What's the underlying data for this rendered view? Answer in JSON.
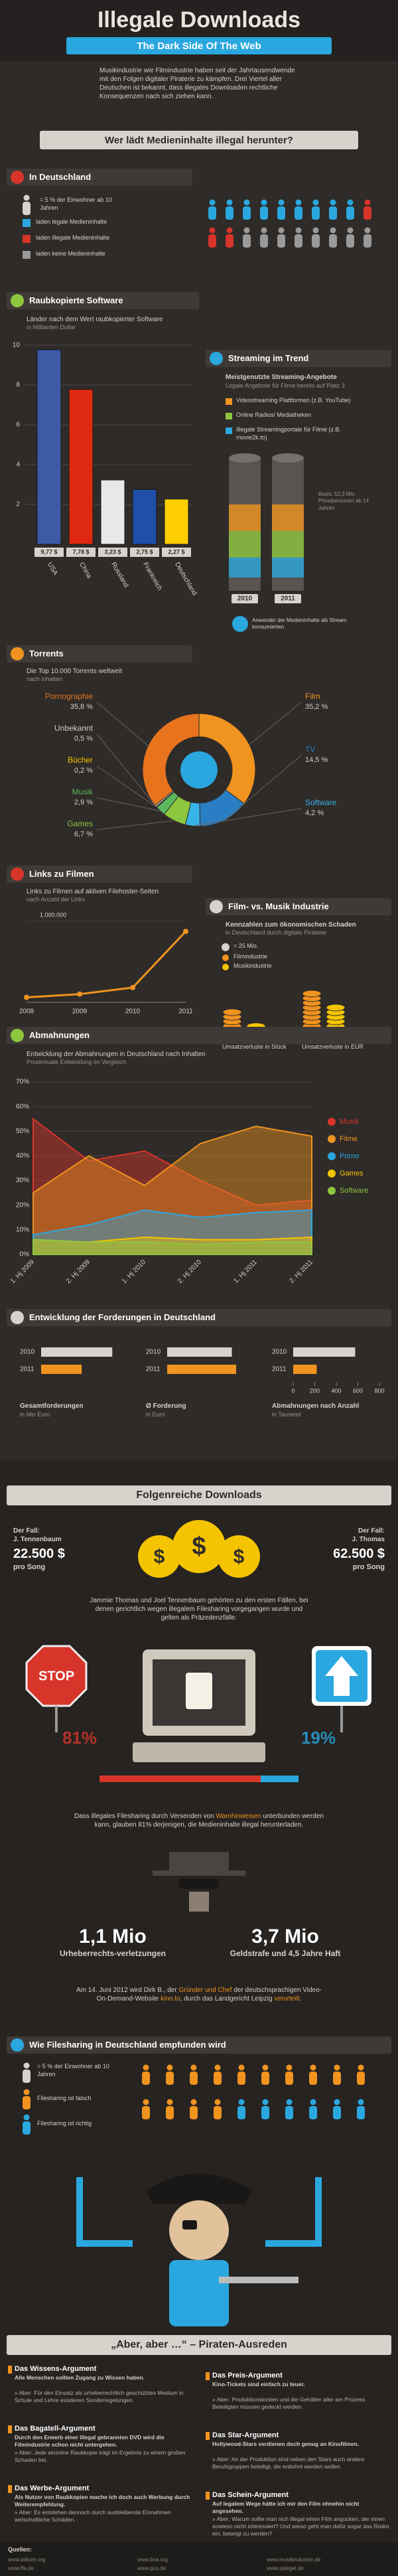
{
  "header": {
    "title": "Illegale Downloads",
    "subtitle": "The Dark Side Of The Web",
    "intro": "Musikindustrie wie Filmindustrie haben seit der Jahrtausendwende mit den Folgen digitaler Piraterie zu kämpfen. Drei Viertel aller Deutschen ist bekannt, dass illegales Downloaden rechtliche Konsequenzen nach sich ziehen kann."
  },
  "who": {
    "heading": "Wer lädt Medieninhalte illegal herunter?"
  },
  "germany": {
    "title": "In Deutschland",
    "unit_label": "= 5 % der Einwohner ab 10 Jahren",
    "unit": 5,
    "categories": [
      "laden legale Medieninhalte",
      "laden illegale Medieninhalte",
      "laden keine Medieninhalte"
    ],
    "values": [
      45,
      15,
      40
    ],
    "colors": [
      "#2aa7df",
      "#d8352a",
      "#9a9a9a"
    ]
  },
  "software": {
    "type": "bar",
    "title": "Raubkopierte Software",
    "subtitle": "Länder nach dem Wert raubkopierter Software",
    "unit_note": "in Milliarden Dollar",
    "categories": [
      "USA",
      "China",
      "Russland",
      "Frankreich",
      "Deutschland"
    ],
    "values": [
      9.77,
      7.78,
      3.23,
      2.75,
      2.27
    ],
    "value_labels": [
      "9,77 $",
      "7,78 $",
      "3,23 $",
      "2,75 $",
      "2,27 $"
    ],
    "colors": [
      "#3c5aa6",
      "#de2910",
      "#e8e8e8",
      "#1f4fa8",
      "#ffce00"
    ],
    "ylim": [
      0,
      10
    ],
    "yticks": [
      2,
      4,
      6,
      8,
      10
    ]
  },
  "streaming": {
    "title": "Streaming im Trend",
    "subtitle": "Meistgenutzte Streaming-Angebote",
    "note": "Legale Angebote für Filme bereits auf Platz 3",
    "legend": [
      {
        "name": "Videostreaming Plattformen (z.B. YouTube)",
        "color": "#f0931f"
      },
      {
        "name": "Online Radios/ Mediatheken",
        "color": "#8dc63f"
      },
      {
        "name": "Illegale Streamingportale für Filme (z.B. movie2k.to)",
        "color": "#2aa7df"
      }
    ],
    "years": [
      "2010",
      "2011"
    ],
    "basis": "Basis: 52,3 Mio Privatpersonen ab 14 Jahren",
    "annotation": "Anwender der Medieninhalte als Stream konsumierten"
  },
  "torrents": {
    "type": "pie",
    "title": "Torrents",
    "subtitle": "Die Top 10.000 Torrents weltweit",
    "unit_note": "nach Inhalten",
    "categories": [
      "Film",
      "TV",
      "Software",
      "Games",
      "Musik",
      "Bücher",
      "Unbekannt",
      "Pornographie"
    ],
    "values": [
      35.2,
      14.5,
      4.2,
      6.7,
      2.9,
      0.2,
      0.5,
      35.8
    ],
    "value_labels": [
      "35,2 %",
      "14,5 %",
      "4,2 %",
      "6,7 %",
      "2,9 %",
      "0,2 %",
      "0,5 %",
      "35,8 %"
    ],
    "colors": [
      "#f0931f",
      "#2a7fc4",
      "#39b4e8",
      "#8dc63f",
      "#5cb85c",
      "#f5c400",
      "#cfcfcf",
      "#e8731d"
    ]
  },
  "links": {
    "type": "line",
    "title": "Links zu Filmen",
    "subtitle": "Links zu Filmen auf aktiven Filehoster-Seiten",
    "unit_note": "nach Anzahl der Links",
    "x": [
      "2008",
      "2009",
      "2010",
      "2011"
    ],
    "values": [
      60000,
      100000,
      180000,
      870000
    ],
    "color": "#f0931f",
    "ylim": [
      0,
      1100000
    ],
    "yticks": [
      {
        "value": 1000000,
        "label": "1.000.000"
      }
    ]
  },
  "industry": {
    "title": "Film- vs. Musik Industrie",
    "subtitle": "Kennzahlen zum ökonomischen Schaden",
    "subtitle2": "in Deutschland durch digitale Piraterie",
    "unit_label": "= 25 Mio.",
    "unit": 25,
    "series": [
      {
        "name": "Filmindustrie",
        "color": "#f0931f"
      },
      {
        "name": "Musikindustrie",
        "color": "#f5c400"
      }
    ],
    "groups": [
      {
        "label": "Umsatzverluste in Stück",
        "values": [
          150,
          75
        ]
      },
      {
        "label": "Umsatzverluste in EUR",
        "values": [
          250,
          175
        ]
      }
    ]
  },
  "warnings": {
    "type": "area",
    "title": "Abmahnungen",
    "subtitle": "Entwicklung der Abmahnungen in Deutschland nach Inhalten",
    "unit_note": "Prozentuale Entwicklung im Vergleich",
    "categories": [
      "1. Hj 2009",
      "2. Hj 2009",
      "1. Hj 2010",
      "2. Hj 2010",
      "1. Hj 2011",
      "2. Hj 2011"
    ],
    "series": [
      {
        "name": "Musik",
        "color": "#d8352a",
        "values": [
          55,
          38,
          42,
          30,
          20,
          22
        ]
      },
      {
        "name": "Filme",
        "color": "#f0931f",
        "values": [
          25,
          40,
          28,
          45,
          52,
          48
        ]
      },
      {
        "name": "Porno",
        "color": "#2aa7df",
        "values": [
          8,
          12,
          18,
          15,
          17,
          18
        ]
      },
      {
        "name": "Games",
        "color": "#f5c400",
        "values": [
          6,
          5,
          7,
          6,
          6,
          7
        ]
      },
      {
        "name": "Software",
        "color": "#8dc63f",
        "values": [
          6,
          5,
          5,
          4,
          5,
          5
        ]
      }
    ],
    "ylim": [
      0,
      70
    ],
    "yticks": [
      {
        "value": 0,
        "label": "0%"
      },
      {
        "value": 10,
        "label": "10%"
      },
      {
        "value": 20,
        "label": "20%"
      },
      {
        "value": 30,
        "label": "30%"
      },
      {
        "value": 40,
        "label": "40%"
      },
      {
        "value": 50,
        "label": "50%"
      },
      {
        "value": 60,
        "label": "60%"
      },
      {
        "value": 70,
        "label": "70%"
      }
    ]
  },
  "claims": {
    "title": "Entwicklung der Forderungen in Deutschland",
    "years": [
      "2010",
      "2011"
    ],
    "charts": [
      {
        "label": "Gesamtforderungen",
        "unit_note": "in Mio Euro",
        "values": [
          165,
          94
        ],
        "xlim": [
          0,
          200
        ]
      },
      {
        "label": "Ø Forderung",
        "unit_note": "in Euro",
        "values": [
          750,
          800
        ],
        "xlim": [
          0,
          1000
        ]
      },
      {
        "label": "Abmahnungen nach Anzahl",
        "unit_note": "in Tausend",
        "values": [
          575,
          218
        ],
        "xlim": [
          0,
          800
        ],
        "xticks": [
          0,
          200,
          400,
          600,
          800
        ]
      }
    ]
  },
  "consequences": {
    "heading": "Folgenreiche Downloads",
    "cases": [
      {
        "label": "Der Fall:",
        "name": "J. Tennenbaum",
        "amount": "22.500 $",
        "unit": "pro Song"
      },
      {
        "label": "Der Fall:",
        "name": "J. Thomas",
        "amount": "62.500 $",
        "unit": "pro Song"
      }
    ],
    "text": "Jammie Thomas und Joel Tennenbaum gehörten zu den ersten Fällen, bei denen gerichtlich wegen illegalem Filesharing vorgegangen wurde und gelten als Präzedenzfälle.",
    "belief": {
      "values": [
        81,
        19
      ],
      "value_labels": [
        "81%",
        "19%"
      ],
      "colors": [
        "#d8352a",
        "#2aa7df"
      ]
    },
    "warn_text": [
      "Dass illegales Filesharing durch Versenden von ",
      "Warnhinweisen",
      " unterbunden werden kann, glauben 81% derjenigen, die Medieninhalte illegal herunterladen."
    ],
    "stats": [
      {
        "value": "1,1 Mio",
        "label": "Urheberrechts-verletzungen"
      },
      {
        "value": "3,7 Mio",
        "label": "Geldstrafe und 4,5 Jahre Haft"
      }
    ],
    "verdict": [
      "Am 14. Juni 2012 wird Dirk B., der ",
      "Gründer und Chef",
      " der deutschsprachigen Video-On-Demand-Website ",
      "kino.to",
      ", durch das Landgericht Leipzig ",
      "verurteilt",
      "."
    ]
  },
  "perception": {
    "title": "Wie Filesharing in Deutschland empfunden wird",
    "unit_label": "= 5 % der Einwohner ab 10 Jahren",
    "unit": 5,
    "categories": [
      "Filesharing ist falsch",
      "Filesharing ist richtig"
    ],
    "values": [
      70,
      30
    ],
    "colors": [
      "#f0931f",
      "#2aa7df"
    ]
  },
  "excuses": {
    "heading": "„Aber, aber …“ – Piraten-Ausreden",
    "arguments": [
      {
        "title": "Das Wissens-Argument",
        "claim": "Alle Menschen sollten Zugang zu Wissen haben.",
        "answer": "» Aber: Für den Einsatz als urheberrechtlich geschütztes Medium in Schule und Lehre existieren Sonderregelungen."
      },
      {
        "title": "Das Preis-Argument",
        "claim": "Kino-Tickets sind einfach zu teuer.",
        "answer": "» Aber: Produktionskosten und die Gehälter aller am Prozess Beteiligten müssen gedeckt werden."
      },
      {
        "title": "Das Bagatell-Argument",
        "claim": "Durch den Erwerb einer illegal gebrannten DVD wird die Filmindustrie schon nicht untergehen.",
        "answer": "» Aber: Jede einzelne Raubkopie trägt im Ergebnis zu einem großen Schaden bei."
      },
      {
        "title": "Das Star-Argument",
        "claim": "Hollywood-Stars verdienen doch genug an Kinofilmen.",
        "answer": "» Aber: An der Produktion sind neben den Stars auch andere Berufsgruppen beteiligt, die entlohnt werden wollen."
      },
      {
        "title": "Das Werbe-Argument",
        "claim": "Als Nutzer von Raubkopien mache ich doch auch Werbung durch Weiterempfehlung.",
        "answer": "» Aber: Es entstehen dennoch durch ausbleibende Einnahmen wirtschaftliche Schäden."
      },
      {
        "title": "Das Schein-Argument",
        "claim": "Auf legalem Wege hätte ich mir den Film ohnehin nicht angesehen.",
        "answer": "» Aber: Warum sollte man sich illegal einen Film angucken, der einen sowieso nicht interessiert? Und wieso geht man dafür sogar das Risiko ein, belangt zu werden?"
      }
    ]
  },
  "footer": {
    "label": "Quellen:",
    "sources": [
      "www.bitkom.org",
      "www.bsa.org",
      "www.musikindustrie.de",
      "www.ffa.de",
      "www.gvu.de",
      "www.spiegel.de"
    ]
  }
}
